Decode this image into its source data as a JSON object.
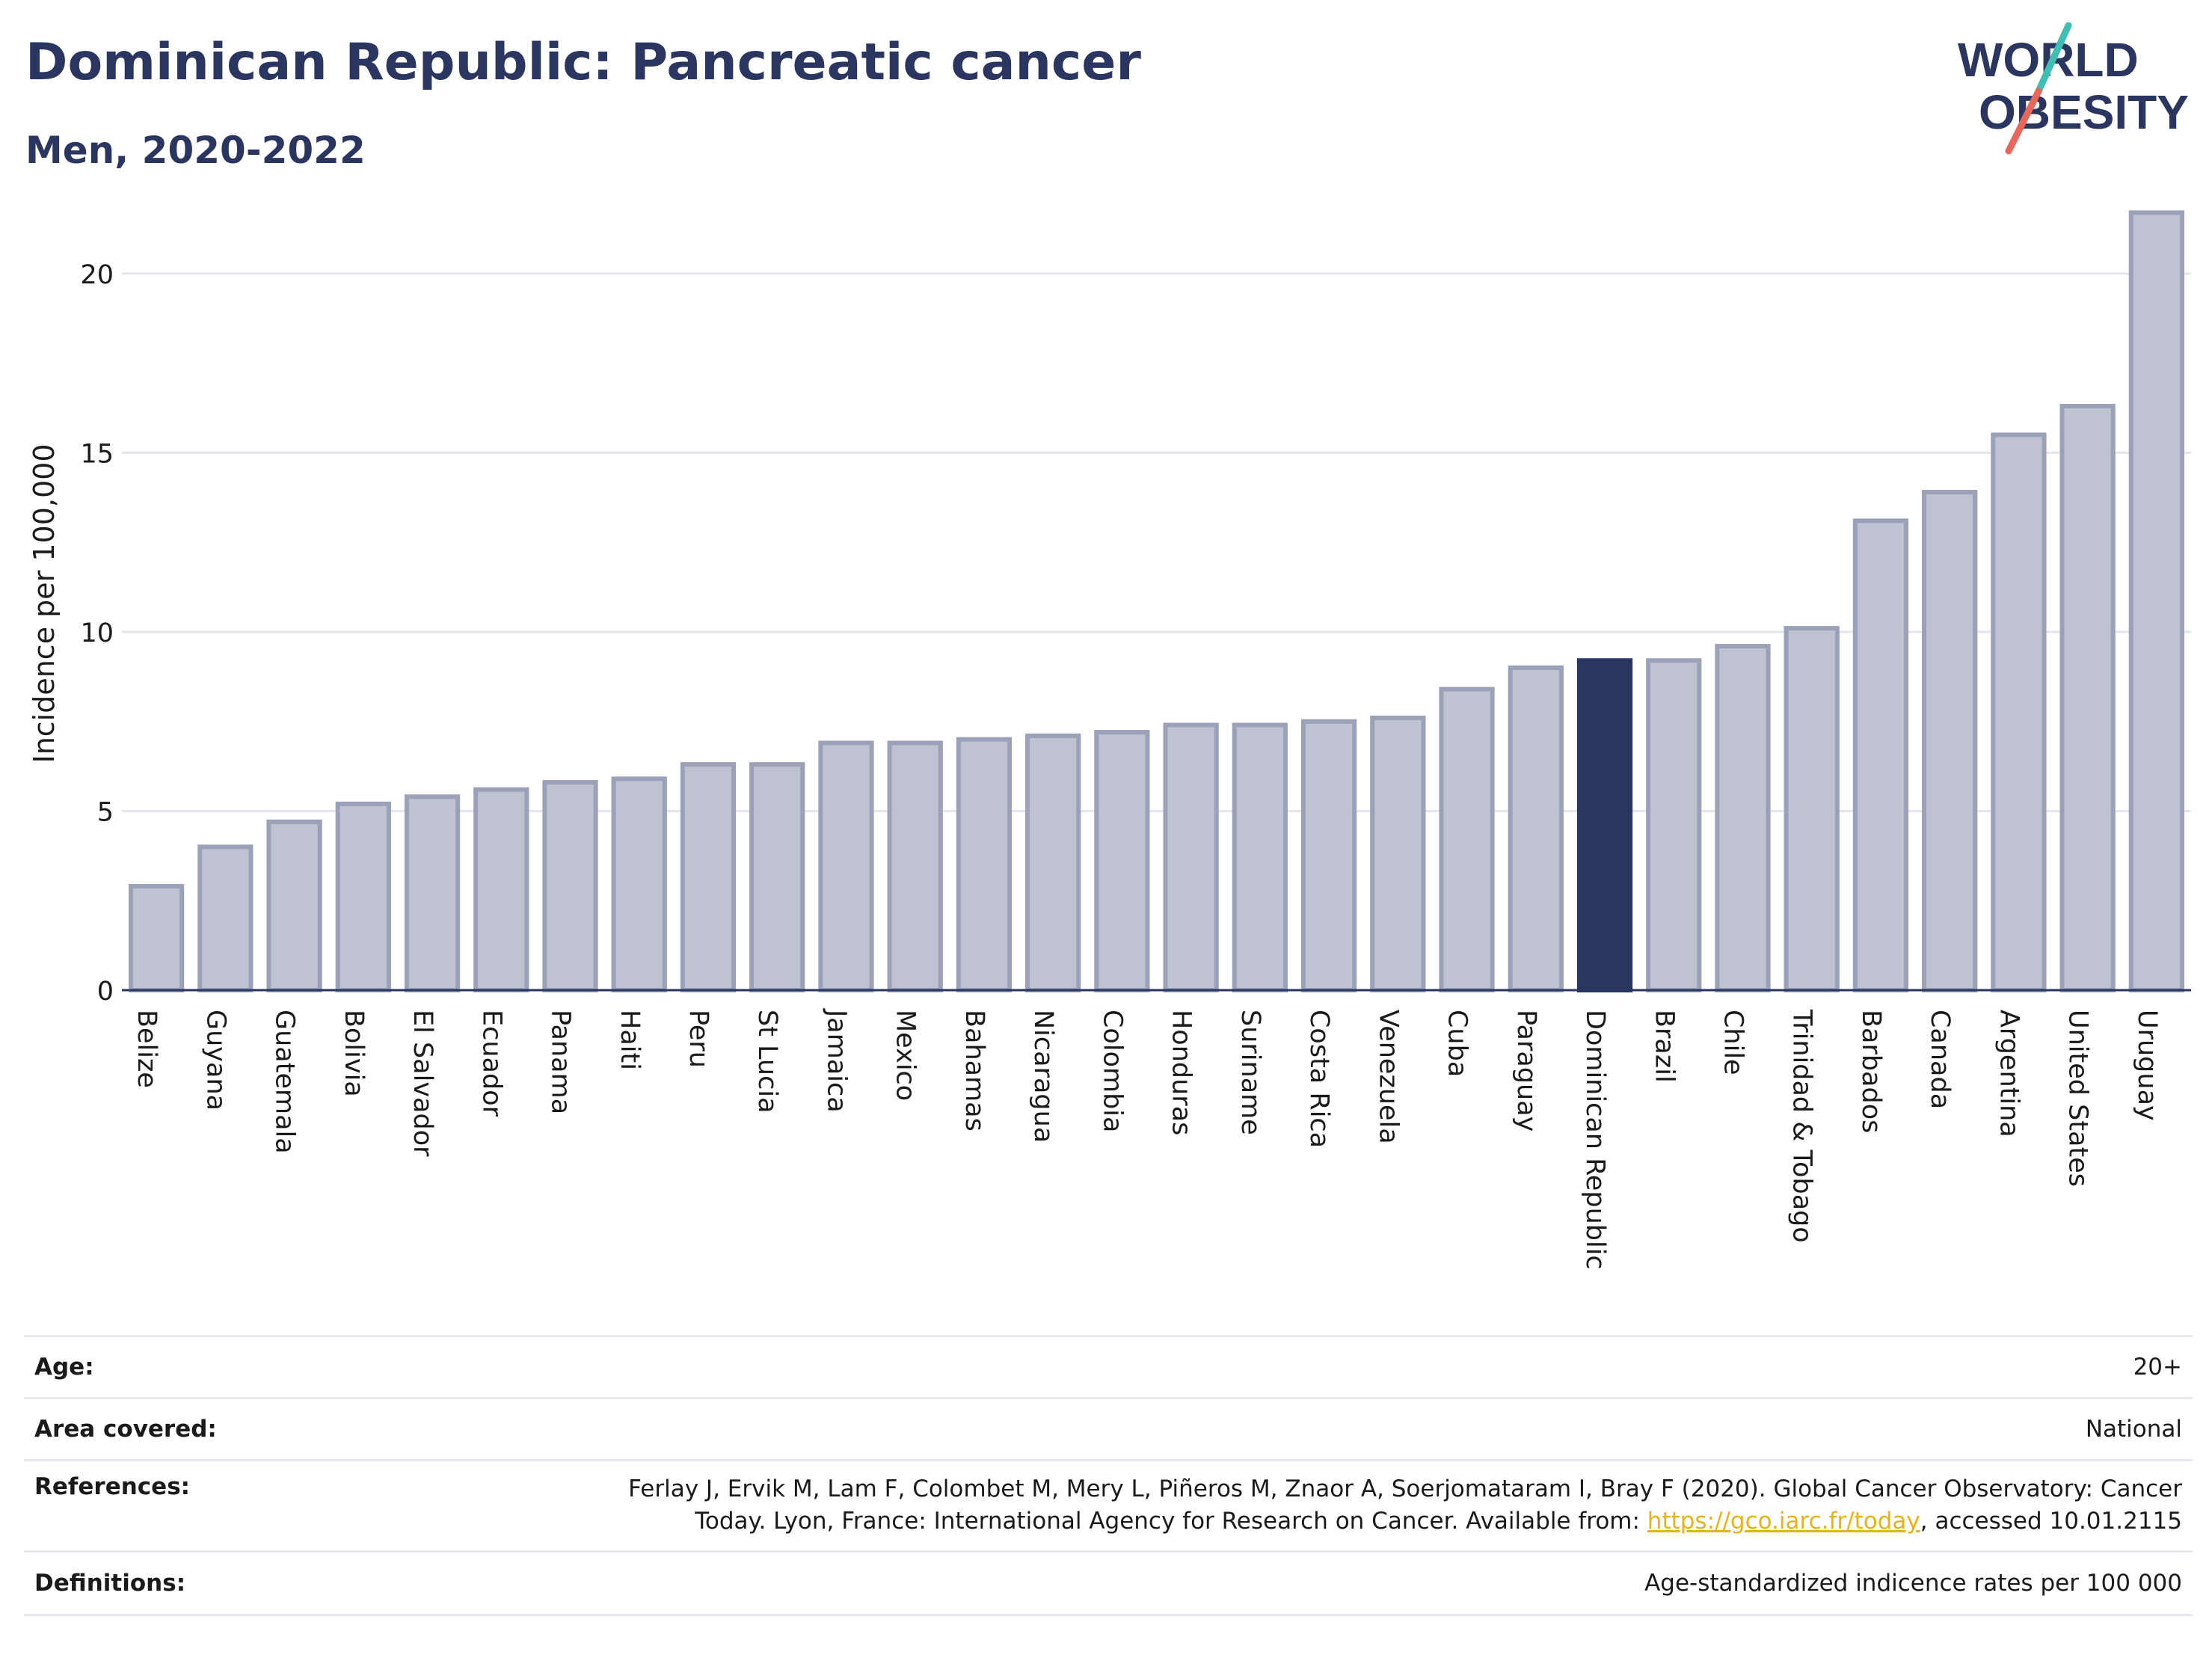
{
  "header": {
    "title": "Dominican Republic: Pancreatic cancer",
    "subtitle": "Men, 2020-2022"
  },
  "logo": {
    "line1": "WORLD",
    "line2": "OBESITY",
    "colors": {
      "text": "#2b3660",
      "slash_teal": "#3fbfb4",
      "slash_coral": "#e8665a"
    }
  },
  "chart_data": {
    "type": "bar",
    "ylabel": "Incidence per 100,000",
    "xlabel": "",
    "ylim": [
      0,
      22
    ],
    "yticks": [
      0,
      5,
      10,
      15,
      20
    ],
    "grid": true,
    "highlight_category": "Dominican Republic",
    "colors": {
      "bar": "#bfc3d1",
      "bar_edge": "#9ba1b8",
      "highlight": "#2b3660"
    },
    "categories": [
      "Belize",
      "Guyana",
      "Guatemala",
      "Bolivia",
      "El Salvador",
      "Ecuador",
      "Panama",
      "Haiti",
      "Peru",
      "St Lucia",
      "Jamaica",
      "Mexico",
      "Bahamas",
      "Nicaragua",
      "Colombia",
      "Honduras",
      "Suriname",
      "Costa Rica",
      "Venezuela",
      "Cuba",
      "Paraguay",
      "Dominican Republic",
      "Brazil",
      "Chile",
      "Trinidad & Tobago",
      "Barbados",
      "Canada",
      "Argentina",
      "United States",
      "Uruguay"
    ],
    "values": [
      2.9,
      4.0,
      4.7,
      5.2,
      5.4,
      5.6,
      5.8,
      5.9,
      6.3,
      6.3,
      6.9,
      6.9,
      7.0,
      7.1,
      7.2,
      7.4,
      7.4,
      7.5,
      7.6,
      8.4,
      9.0,
      9.2,
      9.2,
      9.6,
      10.1,
      13.1,
      13.9,
      15.5,
      16.3,
      21.7
    ]
  },
  "meta": {
    "age_label": "Age:",
    "age_value": "20+",
    "area_label": "Area covered:",
    "area_value": "National",
    "references_label": "References:",
    "references_line1": "Ferlay J, Ervik M, Lam F, Colombet M, Mery L, Piñeros M, Znaor A, Soerjomataram I, Bray F (2020). Global Cancer Observatory: Cancer",
    "references_line2_pre": "Today. Lyon, France: International Agency for Research on Cancer. Available from: ",
    "references_link": "https://gco.iarc.fr/today",
    "references_line2_post": ", accessed 10.01.2115",
    "definitions_label": "Definitions:",
    "definitions_value": "Age-standardized indicence rates per 100 000"
  }
}
